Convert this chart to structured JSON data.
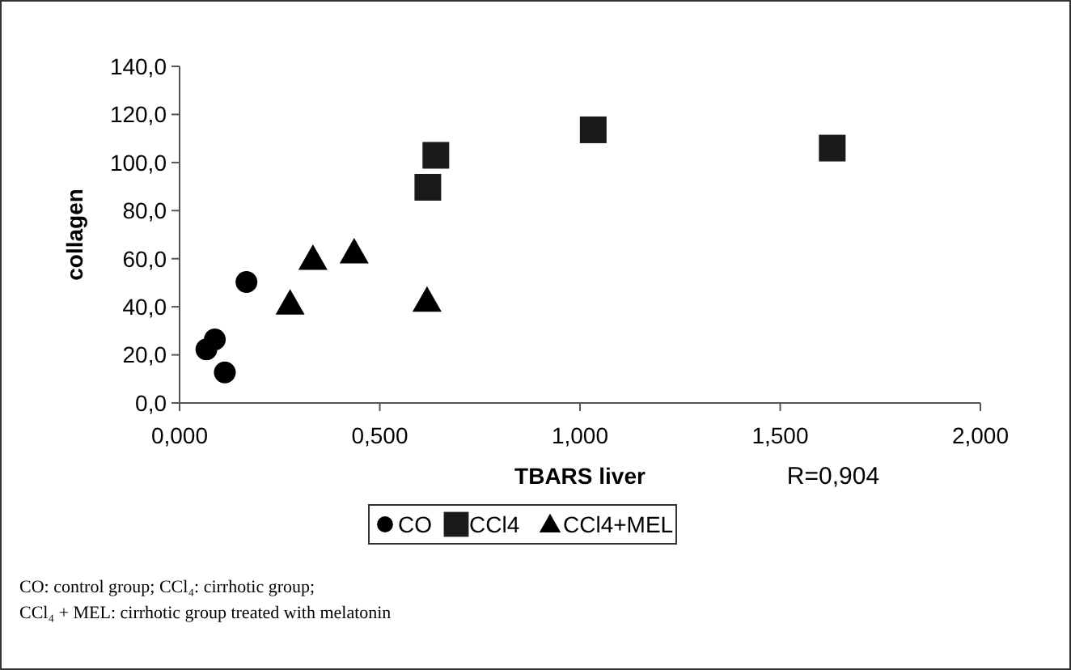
{
  "chart_data": {
    "type": "scatter",
    "xlabel": "TBARS liver",
    "ylabel": "collagen",
    "xlim": [
      0,
      2
    ],
    "ylim": [
      0,
      140
    ],
    "xticks": [
      {
        "value": 0,
        "label": "0,000"
      },
      {
        "value": 0.5,
        "label": "0,500"
      },
      {
        "value": 1,
        "label": "1,000"
      },
      {
        "value": 1.5,
        "label": "1,500"
      },
      {
        "value": 2,
        "label": "2,000"
      }
    ],
    "yticks": [
      {
        "value": 0,
        "label": "0,0"
      },
      {
        "value": 20,
        "label": "20,0"
      },
      {
        "value": 40,
        "label": "40,0"
      },
      {
        "value": 60,
        "label": "60,0"
      },
      {
        "value": 80,
        "label": "80,0"
      },
      {
        "value": 100,
        "label": "100,0"
      },
      {
        "value": 120,
        "label": "120,0"
      },
      {
        "value": 140,
        "label": "140,0"
      }
    ],
    "grid": false,
    "legend": "bottom",
    "series": [
      {
        "name": "CO",
        "color": "#000000",
        "marker": "circle",
        "x": [
          0.067,
          0.088,
          0.113,
          0.167
        ],
        "values": [
          22.3,
          26.4,
          12.7,
          50.3
        ]
      },
      {
        "name": "CCl4",
        "color": "#1a1a1a",
        "marker": "square",
        "x": [
          0.62,
          0.64,
          1.033,
          1.63
        ],
        "values": [
          89.7,
          103,
          113.6,
          106
        ]
      },
      {
        "name": "CCl4+MEL",
        "color": "#000000",
        "marker": "triangle",
        "x": [
          0.276,
          0.333,
          0.436,
          0.618
        ],
        "values": [
          41.3,
          59.9,
          62.6,
          42.5
        ]
      }
    ],
    "annotations": [
      "R=0,904",
      "CO: control group; CCl₄: cirrhotic group;",
      "CCl₄ + MEL: cirrhotic group treated with melatonin"
    ]
  }
}
